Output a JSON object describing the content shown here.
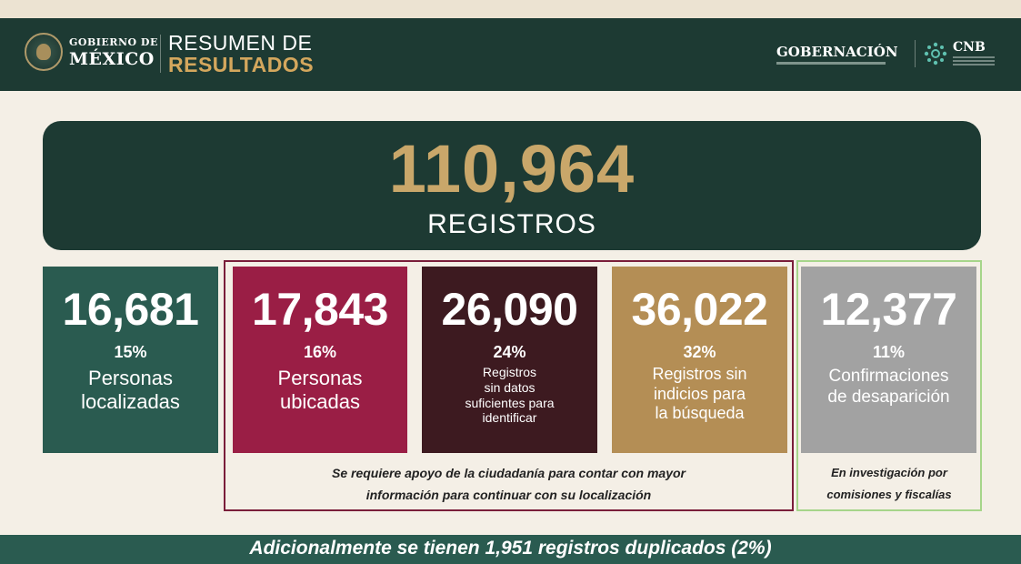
{
  "header": {
    "gob_line1": "GOBIERNO DE",
    "gob_line2": "MÉXICO",
    "title_line1": "RESUMEN DE",
    "title_line2": "RESULTADOS",
    "gobernacion": "GOBERNACIÓN",
    "cnb": "CNB"
  },
  "total": {
    "number": "110,964",
    "label": "REGISTROS"
  },
  "cards": [
    {
      "number": "16,681",
      "percent": "15%",
      "label_lines": [
        "Personas",
        "localizadas"
      ],
      "color": "#2a5b50"
    },
    {
      "number": "17,843",
      "percent": "16%",
      "label_lines": [
        "Personas",
        "ubicadas"
      ],
      "color": "#9a1e45"
    },
    {
      "number": "26,090",
      "percent": "24%",
      "label_lines": [
        "Registros",
        "sin datos",
        "suficientes para",
        "identificar"
      ],
      "color": "#3d1a20"
    },
    {
      "number": "36,022",
      "percent": "32%",
      "label_lines": [
        "Registros sin",
        "indicios para",
        "la búsqueda"
      ],
      "color": "#b48e55"
    },
    {
      "number": "12,377",
      "percent": "11%",
      "label_lines": [
        "Confirmaciones",
        "de desaparición"
      ],
      "color": "#a2a2a2"
    }
  ],
  "group_note": {
    "line1": "Se requiere apoyo de la ciudadanía para contar con mayor",
    "line2": "información para continuar con su localización"
  },
  "investigation_note": {
    "line1": "En investigación por",
    "line2": "comisiones y fiscalías"
  },
  "footer": {
    "text": "Adicionalmente se tienen 1,951 registros duplicados (2%)"
  }
}
